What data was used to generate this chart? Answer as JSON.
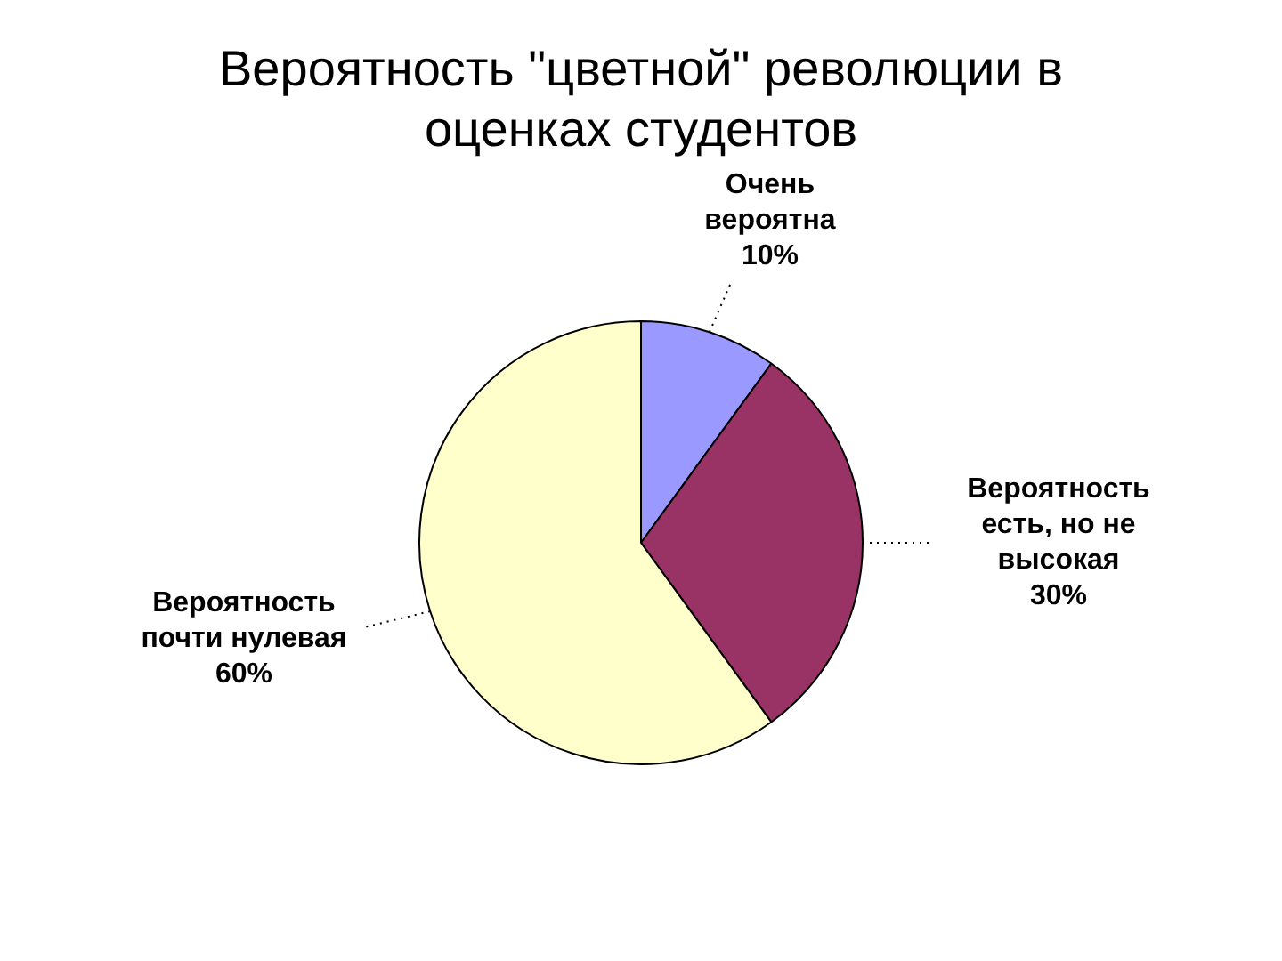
{
  "chart_data": {
    "type": "pie",
    "title": "Вероятность \"цветной\" революции в оценках студентов",
    "categories": [
      "Очень вероятна",
      "Вероятность есть, но не высокая",
      "Вероятность почти нулевая"
    ],
    "values": [
      10,
      30,
      60
    ],
    "colors": [
      "#9999ff",
      "#993366",
      "#ffffcc"
    ],
    "value_labels": [
      "10%",
      "30%",
      "60%"
    ],
    "legend": false
  }
}
